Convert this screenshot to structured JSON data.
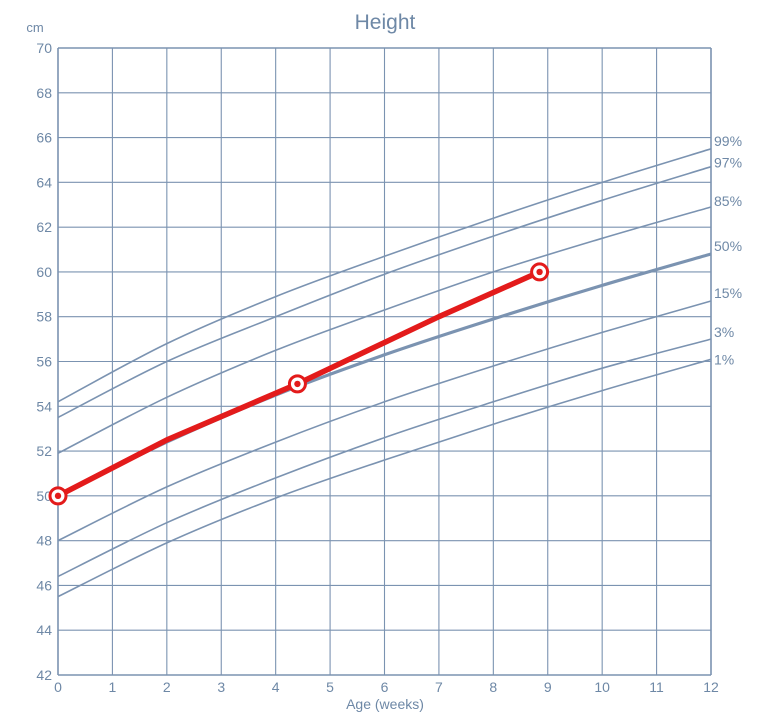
{
  "chart_data": {
    "type": "line",
    "title": "Height",
    "unit_label": "cm",
    "xlabel": "Age (weeks)",
    "ylabel": "",
    "xlim": [
      0,
      12
    ],
    "ylim": [
      42,
      70
    ],
    "x_ticks": [
      0,
      1,
      2,
      3,
      4,
      5,
      6,
      7,
      8,
      9,
      10,
      11,
      12
    ],
    "y_ticks": [
      42,
      44,
      46,
      48,
      50,
      52,
      54,
      56,
      58,
      60,
      62,
      64,
      66,
      68,
      70
    ],
    "grid": true,
    "colors": {
      "grid": "#7b93b1",
      "percentile": "#7b93b1",
      "median": "#7b93b1",
      "patient": "#e31b1b",
      "text": "#6e88a6"
    },
    "percentiles": [
      {
        "name": "99%",
        "x": [
          0,
          2,
          4,
          6,
          8,
          10,
          12
        ],
        "values": [
          54.2,
          56.8,
          58.9,
          60.7,
          62.4,
          64.0,
          65.5
        ]
      },
      {
        "name": "97%",
        "x": [
          0,
          2,
          4,
          6,
          8,
          10,
          12
        ],
        "values": [
          53.5,
          56.0,
          58.0,
          59.9,
          61.6,
          63.2,
          64.7
        ]
      },
      {
        "name": "85%",
        "x": [
          0,
          2,
          4,
          6,
          8,
          10,
          12
        ],
        "values": [
          51.9,
          54.4,
          56.5,
          58.3,
          60.0,
          61.5,
          62.9
        ]
      },
      {
        "name": "50%",
        "x": [
          0,
          2,
          4,
          6,
          8,
          10,
          12
        ],
        "values": [
          50.0,
          52.4,
          54.5,
          56.3,
          57.9,
          59.4,
          60.8
        ]
      },
      {
        "name": "15%",
        "x": [
          0,
          2,
          4,
          6,
          8,
          10,
          12
        ],
        "values": [
          48.0,
          50.4,
          52.4,
          54.2,
          55.8,
          57.3,
          58.7
        ]
      },
      {
        "name": "3%",
        "x": [
          0,
          2,
          4,
          6,
          8,
          10,
          12
        ],
        "values": [
          46.4,
          48.8,
          50.8,
          52.6,
          54.2,
          55.7,
          57.0
        ]
      },
      {
        "name": "1%",
        "x": [
          0,
          2,
          4,
          6,
          8,
          10,
          12
        ],
        "values": [
          45.5,
          47.9,
          49.9,
          51.6,
          53.2,
          54.7,
          56.1
        ]
      }
    ],
    "series": [
      {
        "x": [
          0,
          2,
          4.4,
          7,
          8.85
        ],
        "values": [
          50.0,
          52.5,
          55.0,
          58.0,
          60.0
        ],
        "markers": [
          0,
          2,
          4
        ]
      }
    ]
  }
}
